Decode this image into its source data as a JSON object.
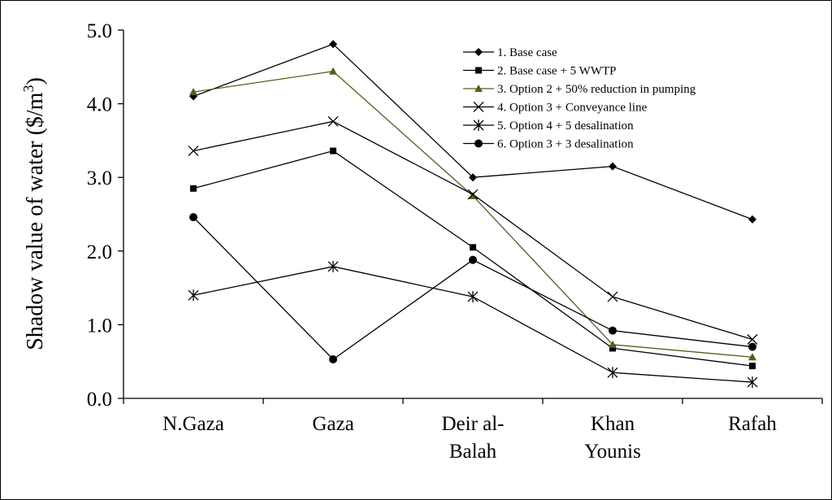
{
  "chart_data": {
    "type": "line",
    "title": "",
    "xlabel": "",
    "ylabel": "Shadow value of water ($/m",
    "ylabel_superscript": "3",
    "ylabel_suffix": ")",
    "ylim": [
      0,
      5
    ],
    "yticks": [
      {
        "value": 0,
        "label": "0.0"
      },
      {
        "value": 1,
        "label": "1.0"
      },
      {
        "value": 2,
        "label": "2.0"
      },
      {
        "value": 3,
        "label": "3.0"
      },
      {
        "value": 4,
        "label": "4.0"
      },
      {
        "value": 5,
        "label": "5.0"
      }
    ],
    "categories": [
      [
        "N.Gaza"
      ],
      [
        "Gaza"
      ],
      [
        "Deir al-",
        "Balah"
      ],
      [
        "Khan",
        "Younis"
      ],
      [
        "Rafah"
      ]
    ],
    "grid": false,
    "legend_position": "top-right",
    "series": [
      {
        "name": "1. Base case",
        "marker": "diamond",
        "color": "#000000",
        "values": [
          4.1,
          4.81,
          3.0,
          3.15,
          2.43
        ]
      },
      {
        "name": "2. Base case + 5 WWTP",
        "marker": "square",
        "color": "#000000",
        "values": [
          2.85,
          3.36,
          2.05,
          0.68,
          0.44
        ]
      },
      {
        "name": "3. Option 2 + 50% reduction in pumping",
        "marker": "triangle",
        "color": "#5c5a1e",
        "values": [
          4.16,
          4.44,
          2.75,
          0.73,
          0.56
        ]
      },
      {
        "name": "4. Option 3 + Conveyance line",
        "marker": "x",
        "color": "#000000",
        "values": [
          3.36,
          3.76,
          2.77,
          1.38,
          0.8
        ]
      },
      {
        "name": "5. Option 4 + 5 desalination",
        "marker": "star",
        "color": "#000000",
        "values": [
          1.4,
          1.79,
          1.38,
          0.35,
          0.22
        ]
      },
      {
        "name": "6. Option 3 + 3 desalination",
        "marker": "circle",
        "color": "#000000",
        "values": [
          2.46,
          0.53,
          1.88,
          0.92,
          0.7
        ]
      }
    ]
  }
}
